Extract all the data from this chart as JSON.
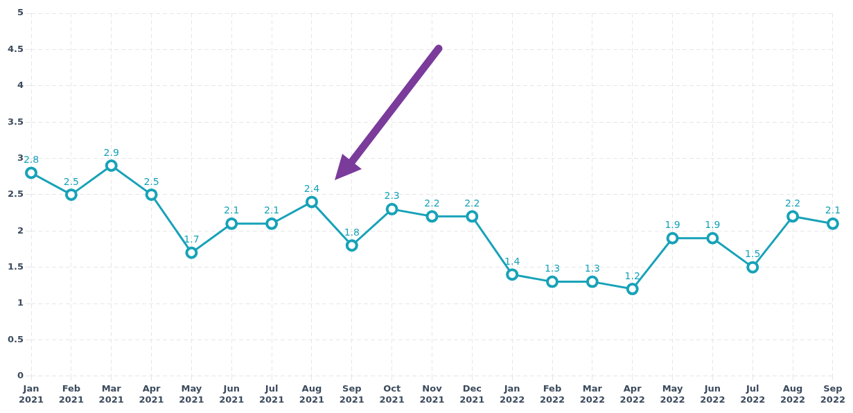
{
  "chart_data": {
    "type": "line",
    "categories": [
      "Jan 2021",
      "Feb 2021",
      "Mar 2021",
      "Apr 2021",
      "May 2021",
      "Jun 2021",
      "Jul 2021",
      "Aug 2021",
      "Sep 2021",
      "Oct 2021",
      "Nov 2021",
      "Dec 2021",
      "Jan 2022",
      "Feb 2022",
      "Mar 2022",
      "Apr 2022",
      "May 2022",
      "Jun 2022",
      "Jul 2022",
      "Aug 2022",
      "Sep 2022"
    ],
    "series": [
      {
        "color": "#17a2b8",
        "values": [
          2.8,
          2.5,
          2.9,
          2.5,
          1.7,
          2.1,
          2.1,
          2.4,
          1.8,
          2.3,
          2.2,
          2.2,
          1.4,
          1.3,
          1.3,
          1.2,
          1.9,
          1.9,
          1.5,
          2.2,
          2.1
        ]
      }
    ],
    "ylim": [
      0,
      5
    ],
    "yticks": [
      0,
      0.5,
      1,
      1.5,
      2,
      2.5,
      3,
      3.5,
      4,
      4.5,
      5
    ],
    "grid": true,
    "legend": false,
    "marker": "circle",
    "line_style": "solid",
    "data_labels": true
  }
}
